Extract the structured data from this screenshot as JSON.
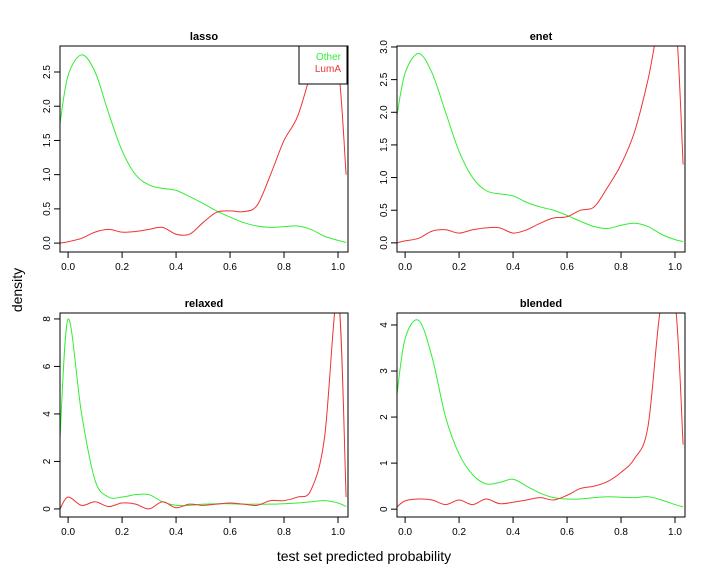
{
  "shared": {
    "xlabel": "test set predicted probability",
    "ylabel": "density"
  },
  "chart_data": [
    {
      "type": "line",
      "title": "lasso",
      "x": [
        -0.03,
        0,
        0.05,
        0.1,
        0.15,
        0.2,
        0.25,
        0.3,
        0.35,
        0.4,
        0.45,
        0.5,
        0.55,
        0.6,
        0.65,
        0.7,
        0.75,
        0.8,
        0.85,
        0.9,
        0.95,
        1.0,
        1.03
      ],
      "series": [
        {
          "name": "Other",
          "color": "#33ee33",
          "values": [
            1.75,
            2.45,
            2.75,
            2.5,
            1.9,
            1.35,
            1.0,
            0.85,
            0.8,
            0.77,
            0.68,
            0.58,
            0.47,
            0.38,
            0.3,
            0.25,
            0.23,
            0.24,
            0.25,
            0.2,
            0.1,
            0.04,
            0.01
          ]
        },
        {
          "name": "LumA",
          "color": "#ee3333",
          "values": [
            0.0,
            0.02,
            0.07,
            0.16,
            0.2,
            0.16,
            0.17,
            0.2,
            0.23,
            0.13,
            0.13,
            0.3,
            0.45,
            0.47,
            0.46,
            0.55,
            1.0,
            1.5,
            1.85,
            2.5,
            3.2,
            2.6,
            1.0
          ]
        }
      ],
      "legend": "topright",
      "xlim": [
        -0.03,
        1.037
      ],
      "ylim": [
        -0.13,
        2.88
      ],
      "xticks": [
        {
          "value": 0,
          "label": "0.0"
        },
        {
          "value": 0.2,
          "label": "0.2"
        },
        {
          "value": 0.4,
          "label": "0.4"
        },
        {
          "value": 0.6,
          "label": "0.6"
        },
        {
          "value": 0.8,
          "label": "0.8"
        },
        {
          "value": 1,
          "label": "1.0"
        }
      ],
      "yticks": [
        {
          "value": 0,
          "label": "0.0"
        },
        {
          "value": 0.5,
          "label": "0.5"
        },
        {
          "value": 1,
          "label": "1.0"
        },
        {
          "value": 1.5,
          "label": "1.5"
        },
        {
          "value": 2,
          "label": "2.0"
        },
        {
          "value": 2.5,
          "label": "2.5"
        }
      ]
    },
    {
      "type": "line",
      "title": "enet",
      "x": [
        -0.03,
        0,
        0.05,
        0.1,
        0.15,
        0.2,
        0.25,
        0.3,
        0.35,
        0.4,
        0.45,
        0.5,
        0.55,
        0.6,
        0.65,
        0.7,
        0.75,
        0.8,
        0.85,
        0.9,
        0.95,
        1.0,
        1.03
      ],
      "series": [
        {
          "color": "#33ee33",
          "values": [
            1.95,
            2.6,
            2.9,
            2.6,
            2.0,
            1.4,
            1.0,
            0.8,
            0.75,
            0.72,
            0.62,
            0.55,
            0.5,
            0.42,
            0.33,
            0.25,
            0.22,
            0.27,
            0.3,
            0.25,
            0.13,
            0.05,
            0.02
          ]
        },
        {
          "color": "#ee3333",
          "values": [
            0.0,
            0.03,
            0.07,
            0.18,
            0.2,
            0.15,
            0.2,
            0.23,
            0.23,
            0.15,
            0.2,
            0.3,
            0.38,
            0.4,
            0.5,
            0.55,
            0.85,
            1.2,
            1.7,
            2.5,
            3.5,
            3.5,
            1.2
          ]
        }
      ],
      "xlim": [
        -0.03,
        1.037
      ],
      "ylim": [
        -0.14,
        3.015
      ],
      "xticks": [
        {
          "value": 0,
          "label": "0.0"
        },
        {
          "value": 0.2,
          "label": "0.2"
        },
        {
          "value": 0.4,
          "label": "0.4"
        },
        {
          "value": 0.6,
          "label": "0.6"
        },
        {
          "value": 0.8,
          "label": "0.8"
        },
        {
          "value": 1,
          "label": "1.0"
        }
      ],
      "yticks": [
        {
          "value": 0,
          "label": "0.0"
        },
        {
          "value": 0.5,
          "label": "0.5"
        },
        {
          "value": 1,
          "label": "1.0"
        },
        {
          "value": 1.5,
          "label": "1.5"
        },
        {
          "value": 2,
          "label": "2.0"
        },
        {
          "value": 2.5,
          "label": "2.5"
        },
        {
          "value": 3,
          "label": "3.0"
        }
      ]
    },
    {
      "type": "line",
      "title": "relaxed",
      "x": [
        -0.03,
        0,
        0.05,
        0.1,
        0.15,
        0.2,
        0.25,
        0.3,
        0.35,
        0.4,
        0.45,
        0.5,
        0.55,
        0.6,
        0.65,
        0.7,
        0.75,
        0.8,
        0.85,
        0.9,
        0.95,
        1.0,
        1.03
      ],
      "series": [
        {
          "color": "#33ee33",
          "values": [
            3.0,
            8.0,
            4.0,
            1.2,
            0.5,
            0.5,
            0.6,
            0.6,
            0.3,
            0.15,
            0.15,
            0.2,
            0.22,
            0.22,
            0.2,
            0.2,
            0.2,
            0.22,
            0.25,
            0.3,
            0.35,
            0.25,
            0.1
          ]
        },
        {
          "color": "#ee3333",
          "values": [
            0.0,
            0.5,
            0.15,
            0.3,
            0.1,
            0.25,
            0.2,
            0.0,
            0.3,
            0.05,
            0.2,
            0.15,
            0.2,
            0.25,
            0.2,
            0.15,
            0.35,
            0.35,
            0.5,
            0.8,
            3.0,
            9.0,
            0.5
          ]
        }
      ],
      "xlim": [
        -0.03,
        1.037
      ],
      "ylim": [
        -0.34,
        8.25
      ],
      "xticks": [
        {
          "value": 0,
          "label": "0.0"
        },
        {
          "value": 0.2,
          "label": "0.2"
        },
        {
          "value": 0.4,
          "label": "0.4"
        },
        {
          "value": 0.6,
          "label": "0.6"
        },
        {
          "value": 0.8,
          "label": "0.8"
        },
        {
          "value": 1,
          "label": "1.0"
        }
      ],
      "yticks": [
        0,
        2,
        4,
        6,
        8
      ]
    },
    {
      "type": "line",
      "title": "blended",
      "x": [
        -0.03,
        0,
        0.05,
        0.1,
        0.15,
        0.2,
        0.25,
        0.3,
        0.35,
        0.4,
        0.45,
        0.5,
        0.55,
        0.6,
        0.65,
        0.7,
        0.75,
        0.8,
        0.85,
        0.9,
        0.95,
        1.0,
        1.03
      ],
      "series": [
        {
          "color": "#33ee33",
          "values": [
            2.5,
            3.7,
            4.1,
            3.3,
            2.0,
            1.2,
            0.75,
            0.55,
            0.58,
            0.65,
            0.5,
            0.35,
            0.25,
            0.22,
            0.22,
            0.25,
            0.27,
            0.26,
            0.25,
            0.27,
            0.2,
            0.1,
            0.05
          ]
        },
        {
          "color": "#ee3333",
          "values": [
            0.05,
            0.18,
            0.22,
            0.2,
            0.1,
            0.2,
            0.1,
            0.22,
            0.12,
            0.15,
            0.2,
            0.25,
            0.2,
            0.3,
            0.45,
            0.5,
            0.6,
            0.8,
            1.1,
            1.8,
            4.5,
            4.5,
            1.4
          ]
        }
      ],
      "xlim": [
        -0.03,
        1.037
      ],
      "ylim": [
        -0.17,
        4.26
      ],
      "xticks": [
        {
          "value": 0,
          "label": "0.0"
        },
        {
          "value": 0.2,
          "label": "0.2"
        },
        {
          "value": 0.4,
          "label": "0.4"
        },
        {
          "value": 0.6,
          "label": "0.6"
        },
        {
          "value": 0.8,
          "label": "0.8"
        },
        {
          "value": 1,
          "label": "1.0"
        }
      ],
      "yticks": [
        0,
        1,
        2,
        3,
        4
      ]
    }
  ]
}
